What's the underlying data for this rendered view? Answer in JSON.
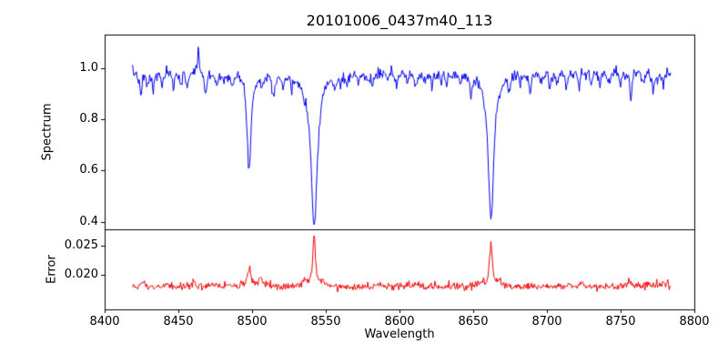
{
  "figure": {
    "background": "#ffffff",
    "frame_color": "#000000",
    "text_color": "#000000"
  },
  "chart_data": {
    "type": "line",
    "title": "20101006_0437m40_113",
    "xlabel": "Wavelength",
    "xlim": [
      8400,
      8800
    ],
    "x_ticks": [
      8400,
      8450,
      8500,
      8550,
      8600,
      8650,
      8700,
      8750,
      8800
    ],
    "x_tick_labels": [
      "8400",
      "8450",
      "8500",
      "8550",
      "8600",
      "8650",
      "8700",
      "8750",
      "8800"
    ],
    "x_data_range": [
      8419,
      8784
    ],
    "sample_step": 0.5,
    "noise_seed": 7,
    "legend": "none",
    "grid": false,
    "panels": [
      {
        "name": "spectrum",
        "ylabel": "Spectrum",
        "ylim": [
          0.37,
          1.13
        ],
        "y_ticks": [
          0.4,
          0.6,
          0.8,
          1.0
        ],
        "y_tick_labels": [
          "0.4",
          "0.6",
          "0.8",
          "1.0"
        ],
        "line_color": "#0000ee",
        "continuum": 0.985,
        "noise_sigma": 0.011,
        "absorption_lines": [
          {
            "center": 8498.0,
            "depth": 0.385,
            "width": 1.6
          },
          {
            "center": 8542.1,
            "depth": 0.6,
            "width": 2.6
          },
          {
            "center": 8662.1,
            "depth": 0.565,
            "width": 2.4
          }
        ],
        "minor_line_width": 0.9,
        "minor_lines": [
          [
            8424.5,
            0.1
          ],
          [
            8429,
            0.05
          ],
          [
            8433,
            0.07
          ],
          [
            8439,
            0.05
          ],
          [
            8446.5,
            0.06
          ],
          [
            8452,
            0.04
          ],
          [
            8456,
            0.05
          ],
          [
            8468.5,
            0.09
          ],
          [
            8476,
            0.05
          ],
          [
            8481,
            0.04
          ],
          [
            8487,
            0.04
          ],
          [
            8507,
            0.05
          ],
          [
            8514.5,
            0.09
          ],
          [
            8521,
            0.05
          ],
          [
            8527,
            0.06
          ],
          [
            8535,
            0.04
          ],
          [
            8556,
            0.05
          ],
          [
            8560,
            0.04
          ],
          [
            8564,
            0.04
          ],
          [
            8572,
            0.04
          ],
          [
            8578,
            0.04
          ],
          [
            8582,
            0.05
          ],
          [
            8592,
            0.04
          ],
          [
            8598,
            0.05
          ],
          [
            8605,
            0.04
          ],
          [
            8611,
            0.06
          ],
          [
            8617,
            0.04
          ],
          [
            8622,
            0.05
          ],
          [
            8628,
            0.04
          ],
          [
            8632,
            0.04
          ],
          [
            8641,
            0.04
          ],
          [
            8648.5,
            0.07
          ],
          [
            8674.5,
            0.06
          ],
          [
            8682,
            0.04
          ],
          [
            8688.5,
            0.08
          ],
          [
            8696,
            0.04
          ],
          [
            8702,
            0.05
          ],
          [
            8707,
            0.04
          ],
          [
            8713,
            0.06
          ],
          [
            8722,
            0.05
          ],
          [
            8730,
            0.05
          ],
          [
            8736,
            0.04
          ],
          [
            8742,
            0.05
          ],
          [
            8750,
            0.04
          ],
          [
            8757,
            0.1
          ],
          [
            8765,
            0.05
          ],
          [
            8772,
            0.07
          ],
          [
            8779,
            0.05
          ]
        ],
        "emission_spikes": [
          {
            "center": 8463.5,
            "amp": 0.09,
            "width": 0.7
          }
        ]
      },
      {
        "name": "error",
        "ylabel": "Error",
        "ylim": [
          0.0142,
          0.0278
        ],
        "y_ticks": [
          0.02,
          0.025
        ],
        "y_tick_labels": [
          "0.020",
          "0.025"
        ],
        "line_color": "#ee0000",
        "baseline": 0.0181,
        "noise_sigma": 0.00032,
        "peaks": [
          {
            "center": 8498.0,
            "amp": 0.0033,
            "width": 1.3
          },
          {
            "center": 8505.5,
            "amp": 0.0015,
            "width": 1.2
          },
          {
            "center": 8536.0,
            "amp": 0.001,
            "width": 1.4
          },
          {
            "center": 8542.1,
            "amp": 0.0085,
            "width": 1.1
          },
          {
            "center": 8548.0,
            "amp": 0.0009,
            "width": 1.4
          },
          {
            "center": 8656.0,
            "amp": 0.0008,
            "width": 1.4
          },
          {
            "center": 8662.1,
            "amp": 0.0078,
            "width": 1.1
          },
          {
            "center": 8668.0,
            "amp": 0.0008,
            "width": 1.4
          },
          {
            "center": 8425.0,
            "amp": 0.0006,
            "width": 1.5
          },
          {
            "center": 8460.0,
            "amp": 0.0007,
            "width": 1.5
          },
          {
            "center": 8612.0,
            "amp": 0.0005,
            "width": 1.5
          },
          {
            "center": 8723.0,
            "amp": 0.0006,
            "width": 1.5
          },
          {
            "center": 8756.0,
            "amp": 0.001,
            "width": 1.4
          },
          {
            "center": 8768.0,
            "amp": 0.0008,
            "width": 1.4
          },
          {
            "center": 8778.0,
            "amp": 0.0007,
            "width": 1.4
          }
        ]
      }
    ]
  }
}
